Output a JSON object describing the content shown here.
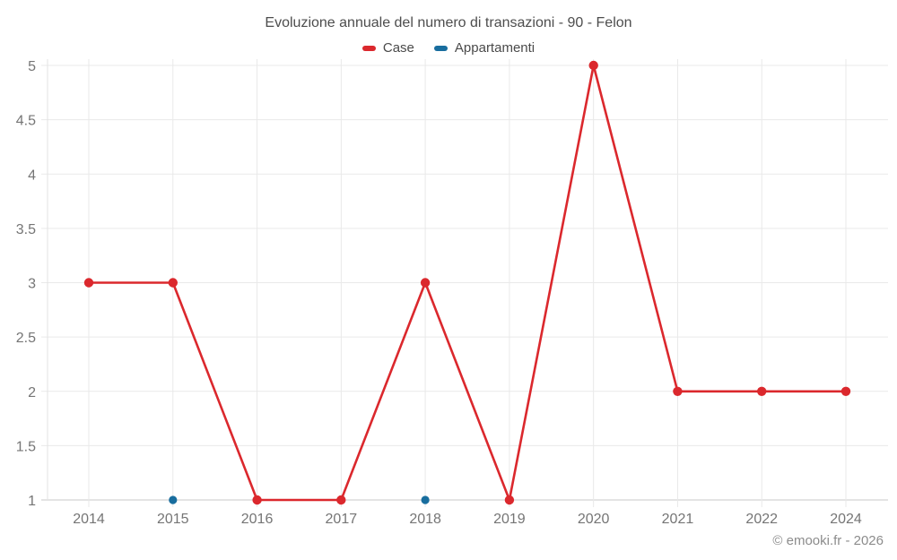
{
  "title": "Evoluzione annuale del numero di transazioni - 90 - Felon",
  "footer": "© emooki.fr - 2026",
  "colors": {
    "background": "#ffffff",
    "grid": "#e9e9e9",
    "axis": "#c9c9c9",
    "left_axis": "#e3e3e3",
    "tick_text": "#757575",
    "title_text": "#4d4d4d",
    "legend_text": "#4a4a4a",
    "footer_text": "#8c8c8c",
    "case_red": "#db282d",
    "appartamenti_blue": "#186d9e"
  },
  "chart_data": {
    "type": "line",
    "title": "Evoluzione annuale del numero di transazioni - 90 - Felon",
    "xlabel": "",
    "ylabel": "",
    "categories": [
      "2014",
      "2015",
      "2016",
      "2017",
      "2018",
      "2019",
      "2020",
      "2021",
      "2022",
      "2024"
    ],
    "series": [
      {
        "name": "Case",
        "color": "#db282d",
        "show_line": true,
        "values": [
          3,
          3,
          1,
          1,
          3,
          1,
          5,
          2,
          2,
          2
        ]
      },
      {
        "name": "Appartamenti",
        "color": "#186d9e",
        "show_line": false,
        "values": [
          null,
          1,
          null,
          null,
          1,
          null,
          null,
          null,
          null,
          null
        ]
      }
    ],
    "ylim": [
      1,
      5
    ],
    "yticks": [
      1,
      1.5,
      2,
      2.5,
      3,
      3.5,
      4,
      4.5,
      5
    ],
    "grid": true,
    "legend_position": "top"
  }
}
